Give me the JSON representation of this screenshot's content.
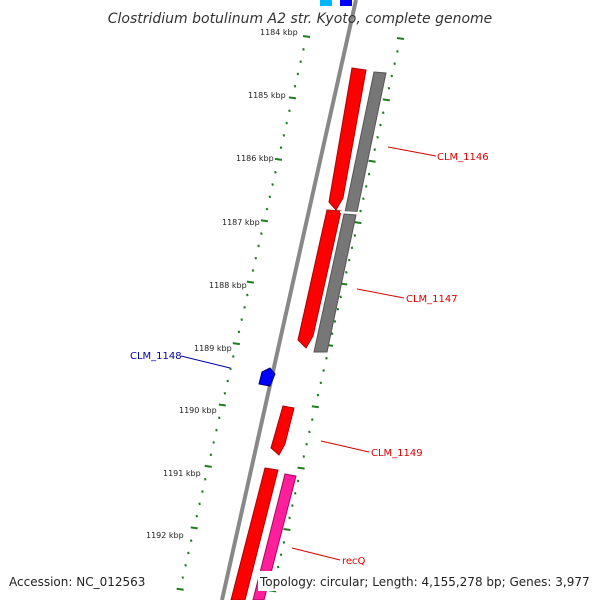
{
  "title": "Clostridium botulinum A2 str. Kyoto, complete genome",
  "footer": {
    "accession": "Accession: NC_012563",
    "topology": "Topology: circular; Length: 4,155,278 bp; Genes: 3,977"
  },
  "scale": {
    "ticks": [
      "1184 kbp",
      "1185 kbp",
      "1186 kbp",
      "1187 kbp",
      "1188 kbp",
      "1189 kbp",
      "1190 kbp",
      "1191 kbp",
      "1192 kbp"
    ]
  },
  "genes": [
    {
      "label": "CLM_1146",
      "color": "#dd0000"
    },
    {
      "label": "CLM_1147",
      "color": "#dd0000"
    },
    {
      "label": "CLM_1148",
      "color": "#0000aa"
    },
    {
      "label": "CLM_1149",
      "color": "#dd0000"
    },
    {
      "label": "recQ",
      "color": "#dd0000"
    }
  ],
  "colors": {
    "backbone": "#888888",
    "cds_forward": "#ff0000",
    "cds_shadow": "#cc0000",
    "gc_bar": "#777777",
    "gene_other": "#ff1f9a",
    "gene_blue": "#0000ff",
    "gene_cyan": "#00b7ff",
    "tick_green": "#1f7f1f"
  }
}
